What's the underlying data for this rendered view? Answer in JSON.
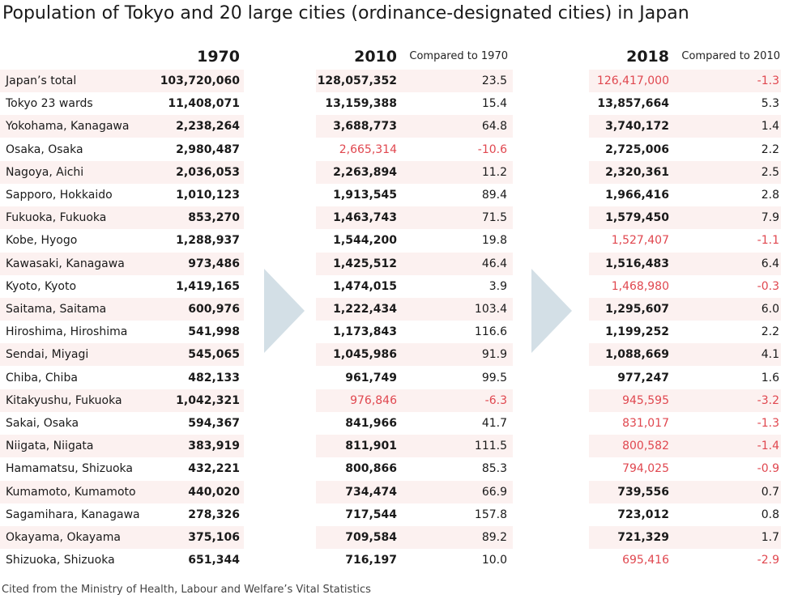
{
  "chart_data": {
    "type": "table",
    "title": "Population of Tokyo and 20 large cities (ordinance-designated cities) in Japan",
    "source": "Cited from the Ministry of Health, Labour and Welfare’s Vital Statistics",
    "negative_color": "#e0474f",
    "shade_color": "#fcf1f0",
    "arrow_color": "#d3dfe6",
    "columns": {
      "y1970": "1970",
      "y2010": "2010",
      "cmp2010": "Compared to 1970",
      "y2018": "2018",
      "cmp2018": "Compared to 2010"
    },
    "rows": [
      {
        "city": "Japan’s total",
        "p1970": "103,720,060",
        "p2010": "128,057,352",
        "c2010": "23.5",
        "p2018": "126,417,000",
        "c2018": "-1.3"
      },
      {
        "city": "Tokyo 23 wards",
        "p1970": "11,408,071",
        "p2010": "13,159,388",
        "c2010": "15.4",
        "p2018": "13,857,664",
        "c2018": "5.3"
      },
      {
        "city": "Yokohama, Kanagawa",
        "p1970": "2,238,264",
        "p2010": "3,688,773",
        "c2010": "64.8",
        "p2018": "3,740,172",
        "c2018": "1.4"
      },
      {
        "city": "Osaka, Osaka",
        "p1970": "2,980,487",
        "p2010": "2,665,314",
        "c2010": "-10.6",
        "p2018": "2,725,006",
        "c2018": "2.2"
      },
      {
        "city": "Nagoya, Aichi",
        "p1970": "2,036,053",
        "p2010": "2,263,894",
        "c2010": "11.2",
        "p2018": "2,320,361",
        "c2018": "2.5"
      },
      {
        "city": "Sapporo, Hokkaido",
        "p1970": "1,010,123",
        "p2010": "1,913,545",
        "c2010": "89.4",
        "p2018": "1,966,416",
        "c2018": "2.8"
      },
      {
        "city": "Fukuoka, Fukuoka",
        "p1970": "853,270",
        "p2010": "1,463,743",
        "c2010": "71.5",
        "p2018": "1,579,450",
        "c2018": "7.9"
      },
      {
        "city": "Kobe, Hyogo",
        "p1970": "1,288,937",
        "p2010": "1,544,200",
        "c2010": "19.8",
        "p2018": "1,527,407",
        "c2018": "-1.1"
      },
      {
        "city": "Kawasaki, Kanagawa",
        "p1970": "973,486",
        "p2010": "1,425,512",
        "c2010": "46.4",
        "p2018": "1,516,483",
        "c2018": "6.4"
      },
      {
        "city": "Kyoto, Kyoto",
        "p1970": "1,419,165",
        "p2010": "1,474,015",
        "c2010": "3.9",
        "p2018": "1,468,980",
        "c2018": "-0.3"
      },
      {
        "city": "Saitama, Saitama",
        "p1970": "600,976",
        "p2010": "1,222,434",
        "c2010": "103.4",
        "p2018": "1,295,607",
        "c2018": "6.0"
      },
      {
        "city": "Hiroshima, Hiroshima",
        "p1970": "541,998",
        "p2010": "1,173,843",
        "c2010": "116.6",
        "p2018": "1,199,252",
        "c2018": "2.2"
      },
      {
        "city": "Sendai, Miyagi",
        "p1970": "545,065",
        "p2010": "1,045,986",
        "c2010": "91.9",
        "p2018": "1,088,669",
        "c2018": "4.1"
      },
      {
        "city": "Chiba, Chiba",
        "p1970": "482,133",
        "p2010": "961,749",
        "c2010": "99.5",
        "p2018": "977,247",
        "c2018": "1.6"
      },
      {
        "city": "Kitakyushu, Fukuoka",
        "p1970": "1,042,321",
        "p2010": "976,846",
        "c2010": "-6.3",
        "p2018": "945,595",
        "c2018": "-3.2"
      },
      {
        "city": "Sakai, Osaka",
        "p1970": "594,367",
        "p2010": "841,966",
        "c2010": "41.7",
        "p2018": "831,017",
        "c2018": "-1.3"
      },
      {
        "city": "Niigata, Niigata",
        "p1970": "383,919",
        "p2010": "811,901",
        "c2010": "111.5",
        "p2018": "800,582",
        "c2018": "-1.4"
      },
      {
        "city": "Hamamatsu, Shizuoka",
        "p1970": "432,221",
        "p2010": "800,866",
        "c2010": "85.3",
        "p2018": "794,025",
        "c2018": "-0.9"
      },
      {
        "city": "Kumamoto, Kumamoto",
        "p1970": "440,020",
        "p2010": "734,474",
        "c2010": "66.9",
        "p2018": "739,556",
        "c2018": "0.7"
      },
      {
        "city": "Sagamihara, Kanagawa",
        "p1970": "278,326",
        "p2010": "717,544",
        "c2010": "157.8",
        "p2018": "723,012",
        "c2018": "0.8"
      },
      {
        "city": "Okayama, Okayama",
        "p1970": "375,106",
        "p2010": "709,584",
        "c2010": "89.2",
        "p2018": "721,329",
        "c2018": "1.7"
      },
      {
        "city": "Shizuoka, Shizuoka",
        "p1970": "651,344",
        "p2010": "716,197",
        "c2010": "10.0",
        "p2018": "695,416",
        "c2018": "-2.9"
      }
    ]
  }
}
